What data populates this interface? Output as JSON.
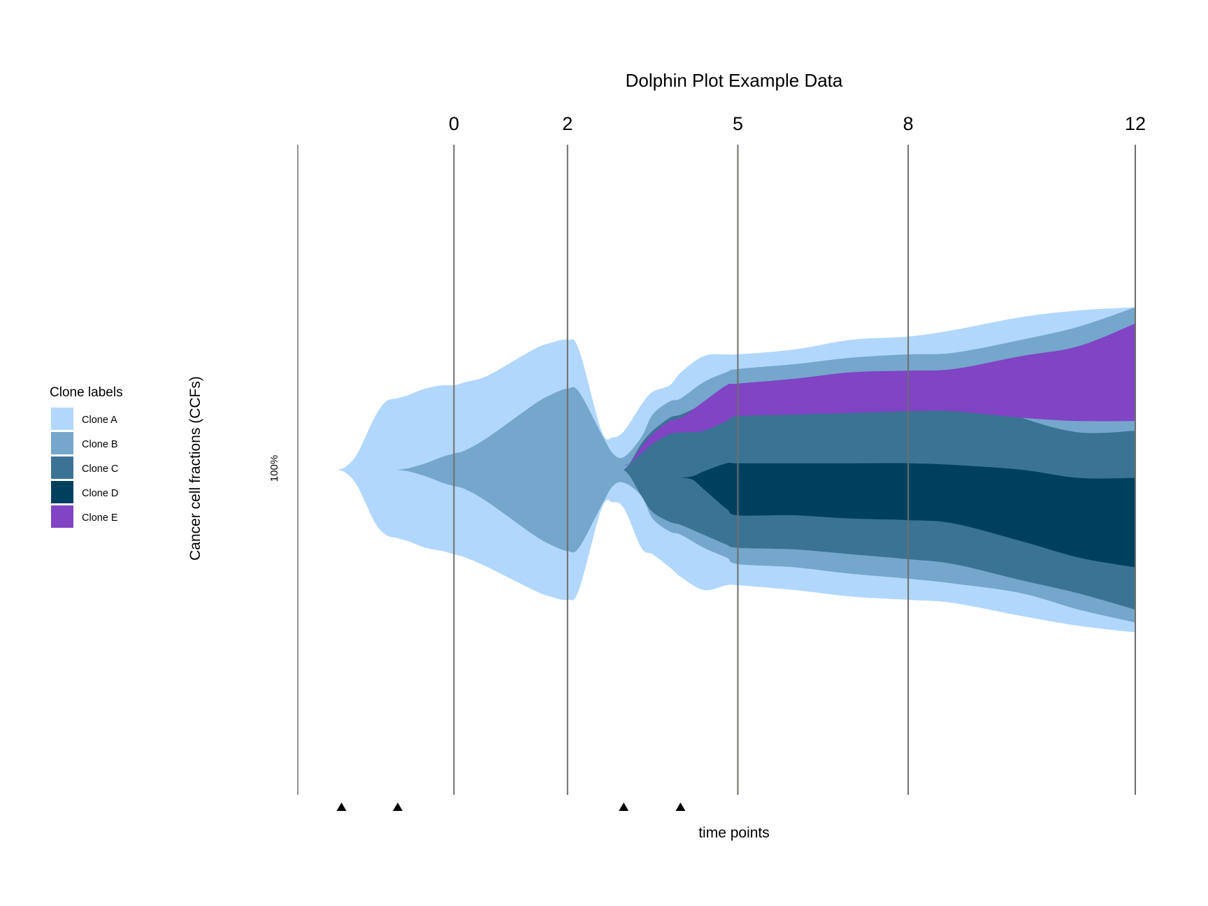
{
  "chart_data": {
    "type": "area",
    "subtype": "dolphin-fish-plot",
    "title": "Dolphin Plot Example Data",
    "xlabel": "time points",
    "ylabel": "Cancer cell fractions (CCFs)",
    "ytick": "100%",
    "timepoints": [
      0,
      2,
      5,
      8,
      12
    ],
    "x_range": [
      -2.75,
      12
    ],
    "event_markers": [
      -1.98,
      -0.99,
      2.99,
      3.99
    ],
    "legend": {
      "title": "Clone labels",
      "position": "left",
      "entries": [
        "Clone A",
        "Clone B",
        "Clone C",
        "Clone D",
        "Clone E"
      ]
    },
    "colors": {
      "Clone A": "#b1d7fd",
      "Clone B": "#75a6cb",
      "Clone C": "#3b7395",
      "Clone D": "#00405f",
      "Clone E": "#8044c4",
      "gridline": "#6d6e69"
    },
    "series": [
      {
        "name": "Clone A",
        "segments": [
          {
            "x": [
              -2.05,
              -1.9,
              -1.7,
              -1.4,
              -1.2,
              -1.0,
              -0.8,
              -0.5,
              -0.2,
              0,
              0.2,
              0.6,
              1.4,
              1.7,
              2.0,
              2.2,
              2.6,
              2.8,
              3.0,
              3.3,
              3.5,
              3.8,
              4.0,
              4.4,
              4.8,
              5.0,
              6.0,
              7.0,
              8.0,
              8.8,
              10.0,
              11.0,
              12.0
            ],
            "upper": [
              0.0,
              0.01,
              0.05,
              0.16,
              0.21,
              0.22,
              0.23,
              0.25,
              0.26,
              0.26,
              0.27,
              0.29,
              0.37,
              0.39,
              0.4,
              0.37,
              0.12,
              0.1,
              0.12,
              0.2,
              0.24,
              0.26,
              0.3,
              0.35,
              0.355,
              0.355,
              0.37,
              0.4,
              0.41,
              0.43,
              0.47,
              0.49,
              0.5
            ],
            "lower": [
              0.0,
              -0.01,
              -0.05,
              -0.16,
              -0.2,
              -0.21,
              -0.22,
              -0.24,
              -0.25,
              -0.26,
              -0.27,
              -0.3,
              -0.37,
              -0.39,
              -0.4,
              -0.37,
              -0.12,
              -0.1,
              -0.12,
              -0.24,
              -0.26,
              -0.3,
              -0.33,
              -0.37,
              -0.355,
              -0.355,
              -0.37,
              -0.39,
              -0.4,
              -0.41,
              -0.45,
              -0.48,
              -0.5
            ]
          }
        ]
      },
      {
        "name": "Clone B",
        "segments": [
          {
            "x": [
              -1.0,
              -0.8,
              -0.5,
              -0.2,
              0,
              0.2,
              0.6,
              1.4,
              1.7,
              2.0,
              2.2,
              2.6,
              2.8,
              3.0,
              3.3,
              3.5,
              3.8,
              4.0,
              4.4,
              4.8,
              5.0,
              6.0,
              7.0,
              8.0,
              8.8,
              10.0,
              11.0,
              12.0
            ],
            "upper": [
              0.0,
              0.005,
              0.02,
              0.04,
              0.05,
              0.06,
              0.1,
              0.2,
              0.23,
              0.25,
              0.24,
              0.11,
              0.05,
              0.04,
              0.1,
              0.17,
              0.21,
              0.22,
              0.27,
              0.3,
              0.31,
              0.325,
              0.345,
              0.355,
              0.36,
              0.4,
              0.44,
              0.5
            ],
            "lower": [
              0.0,
              -0.005,
              -0.02,
              -0.04,
              -0.05,
              -0.06,
              -0.1,
              -0.2,
              -0.23,
              -0.25,
              -0.24,
              -0.11,
              -0.05,
              -0.04,
              -0.08,
              -0.15,
              -0.19,
              -0.2,
              -0.24,
              -0.27,
              -0.29,
              -0.3,
              -0.32,
              -0.335,
              -0.35,
              -0.38,
              -0.43,
              -0.47
            ]
          }
        ]
      },
      {
        "name": "Clone C",
        "segments": [
          {
            "x": [
              2.99,
              3.1,
              3.3,
              3.5,
              3.8,
              4.0,
              4.4,
              4.8,
              5.0,
              6.0,
              7.0,
              8.0,
              8.8,
              10.0,
              11.0,
              12.0
            ],
            "upper": [
              0.0,
              0.02,
              0.08,
              0.12,
              0.16,
              0.17,
              0.2,
              0.22,
              0.23,
              0.235,
              0.245,
              0.245,
              0.24,
              0.16,
              0.115,
              0.12
            ],
            "lower": [
              0.0,
              -0.02,
              -0.08,
              -0.13,
              -0.16,
              -0.17,
              -0.2,
              -0.23,
              -0.24,
              -0.245,
              -0.26,
              -0.275,
              -0.29,
              -0.34,
              -0.38,
              -0.43
            ]
          }
        ]
      },
      {
        "name": "Clone D",
        "segments": [
          {
            "x": [
              3.99,
              4.2,
              4.4,
              4.8,
              5.0,
              6.0,
              7.0,
              8.0,
              8.8,
              10.0,
              11.0,
              12.0
            ],
            "upper": [
              -0.025,
              -0.02,
              -0.005,
              0.02,
              0.02,
              0.02,
              0.02,
              0.02,
              0.015,
              0.0,
              -0.025,
              -0.025
            ],
            "lower": [
              -0.025,
              -0.03,
              -0.06,
              -0.12,
              -0.14,
              -0.14,
              -0.15,
              -0.155,
              -0.165,
              -0.22,
              -0.27,
              -0.3
            ]
          }
        ]
      },
      {
        "name": "Clone E",
        "segments": [
          {
            "x": [
              2.99,
              3.1,
              3.3,
              3.5,
              3.8,
              4.0,
              4.4,
              4.8,
              5.0,
              6.0,
              7.0,
              8.0,
              8.8,
              10.0,
              11.0,
              12.0
            ],
            "upper": [
              0.015,
              0.02,
              0.07,
              0.11,
              0.15,
              0.16,
              0.21,
              0.26,
              0.265,
              0.28,
              0.3,
              0.305,
              0.31,
              0.35,
              0.38,
              0.45
            ],
            "lower": [
              0.015,
              0.02,
              0.05,
              0.08,
              0.11,
              0.115,
              0.12,
              0.15,
              0.165,
              0.17,
              0.175,
              0.18,
              0.18,
              0.16,
              0.15,
              0.15
            ]
          }
        ]
      }
    ]
  }
}
